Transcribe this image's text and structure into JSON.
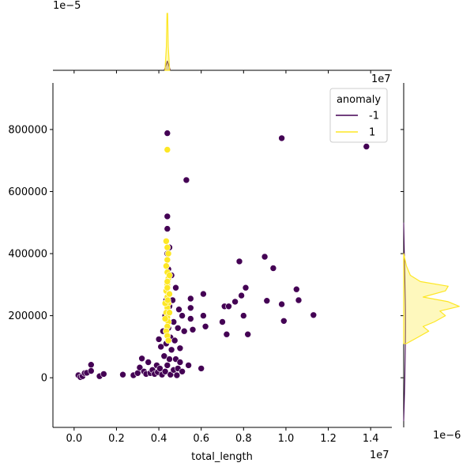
{
  "chart_data": {
    "type": "scatter",
    "kind": "jointplot",
    "xlabel": "total_length",
    "ylabel": "",
    "xlim": [
      -1000000,
      15000000
    ],
    "ylim": [
      -160000,
      950000
    ],
    "x_ticks": [
      0,
      2000000,
      4000000,
      6000000,
      8000000,
      10000000,
      12000000,
      14000000
    ],
    "x_tick_labels": [
      "0.0",
      "0.2",
      "0.4",
      "0.6",
      "0.8",
      "1.0",
      "1.2",
      "1.4"
    ],
    "y_ticks": [
      0,
      200000,
      400000,
      600000,
      800000
    ],
    "y_tick_labels": [
      "0",
      "200000",
      "400000",
      "600000",
      "800000"
    ],
    "x_offset_label": "1e7",
    "top_marginal_offset_label": "1e−5",
    "right_marginal_offset_label": "1e−6",
    "legend": {
      "title": "anomaly",
      "location": "upper right",
      "entries": [
        {
          "label": "-1",
          "color": "#440154"
        },
        {
          "label": "1",
          "color": "#fde725"
        }
      ]
    },
    "colors": {
      "anomaly_-1": "#440154",
      "anomaly_1": "#fde725"
    },
    "series": [
      {
        "name": "-1",
        "color": "#440154",
        "points": [
          [
            200000,
            8000
          ],
          [
            300000,
            2000
          ],
          [
            400000,
            5000
          ],
          [
            500000,
            15000
          ],
          [
            600000,
            16000
          ],
          [
            800000,
            42000
          ],
          [
            800000,
            22000
          ],
          [
            1200000,
            5000
          ],
          [
            1400000,
            12000
          ],
          [
            2300000,
            10000
          ],
          [
            2800000,
            8000
          ],
          [
            3000000,
            15000
          ],
          [
            3100000,
            33000
          ],
          [
            3200000,
            62000
          ],
          [
            3300000,
            20000
          ],
          [
            3400000,
            12000
          ],
          [
            3500000,
            50000
          ],
          [
            3600000,
            15000
          ],
          [
            3700000,
            25000
          ],
          [
            3800000,
            12000
          ],
          [
            3900000,
            40000
          ],
          [
            3950000,
            18000
          ],
          [
            4000000,
            124000
          ],
          [
            4050000,
            30000
          ],
          [
            4100000,
            100000
          ],
          [
            4150000,
            10000
          ],
          [
            4200000,
            150000
          ],
          [
            4250000,
            70000
          ],
          [
            4300000,
            200000
          ],
          [
            4300000,
            20000
          ],
          [
            4350000,
            250000
          ],
          [
            4350000,
            110000
          ],
          [
            4400000,
            300000
          ],
          [
            4400000,
            40000
          ],
          [
            4400000,
            788000
          ],
          [
            4400000,
            520000
          ],
          [
            4400000,
            480000
          ],
          [
            4400000,
            400000
          ],
          [
            4450000,
            350000
          ],
          [
            4450000,
            160000
          ],
          [
            4500000,
            60000
          ],
          [
            4500000,
            230000
          ],
          [
            4500000,
            420000
          ],
          [
            4550000,
            130000
          ],
          [
            4550000,
            10000
          ],
          [
            4600000,
            330000
          ],
          [
            4600000,
            90000
          ],
          [
            4650000,
            250000
          ],
          [
            4700000,
            25000
          ],
          [
            4700000,
            180000
          ],
          [
            4750000,
            120000
          ],
          [
            4800000,
            60000
          ],
          [
            4800000,
            290000
          ],
          [
            4850000,
            8000
          ],
          [
            4900000,
            160000
          ],
          [
            4900000,
            30000
          ],
          [
            4950000,
            220000
          ],
          [
            5000000,
            95000
          ],
          [
            5000000,
            50000
          ],
          [
            5100000,
            200000
          ],
          [
            5100000,
            20000
          ],
          [
            5200000,
            150000
          ],
          [
            5300000,
            637000
          ],
          [
            5400000,
            40000
          ],
          [
            5500000,
            255000
          ],
          [
            5500000,
            225000
          ],
          [
            5500000,
            190000
          ],
          [
            5600000,
            155000
          ],
          [
            6000000,
            30000
          ],
          [
            6100000,
            270000
          ],
          [
            6100000,
            200000
          ],
          [
            6200000,
            165000
          ],
          [
            7000000,
            180000
          ],
          [
            7100000,
            230000
          ],
          [
            7200000,
            140000
          ],
          [
            7300000,
            230000
          ],
          [
            7600000,
            245000
          ],
          [
            7800000,
            375000
          ],
          [
            7900000,
            265000
          ],
          [
            8000000,
            200000
          ],
          [
            8100000,
            290000
          ],
          [
            8200000,
            140000
          ],
          [
            9000000,
            390000
          ],
          [
            9100000,
            248000
          ],
          [
            9400000,
            353000
          ],
          [
            9800000,
            772000
          ],
          [
            9800000,
            237000
          ],
          [
            9900000,
            183000
          ],
          [
            10500000,
            285000
          ],
          [
            10600000,
            250000
          ],
          [
            11300000,
            202000
          ],
          [
            13800000,
            745000
          ]
        ]
      },
      {
        "name": "1",
        "color": "#fde725",
        "points": [
          [
            4400000,
            735000
          ],
          [
            4350000,
            440000
          ],
          [
            4400000,
            420000
          ],
          [
            4450000,
            400000
          ],
          [
            4400000,
            380000
          ],
          [
            4350000,
            360000
          ],
          [
            4400000,
            340000
          ],
          [
            4450000,
            320000
          ],
          [
            4400000,
            300000
          ],
          [
            4350000,
            280000
          ],
          [
            4400000,
            260000
          ],
          [
            4450000,
            240000
          ],
          [
            4400000,
            225000
          ],
          [
            4350000,
            210000
          ],
          [
            4400000,
            195000
          ],
          [
            4450000,
            180000
          ],
          [
            4400000,
            165000
          ],
          [
            4350000,
            150000
          ],
          [
            4400000,
            135000
          ],
          [
            4450000,
            120000
          ],
          [
            4400000,
            310000
          ],
          [
            4500000,
            330000
          ],
          [
            4300000,
            240000
          ],
          [
            4500000,
            270000
          ],
          [
            4300000,
            190000
          ],
          [
            4500000,
            210000
          ],
          [
            4400000,
            290000
          ],
          [
            4420000,
            250000
          ]
        ]
      }
    ],
    "x_marginal_density": {
      "series": [
        {
          "name": "-1",
          "color": "#440154",
          "x_center": 4400000,
          "shape": "sharp narrow peak"
        },
        {
          "name": "1",
          "color": "#fde725",
          "x_center": 4400000,
          "shape": "sharp narrow peak"
        }
      ]
    },
    "y_marginal_density": {
      "series": [
        {
          "name": "-1",
          "color": "#440154",
          "shape": "thin near-zero curve"
        },
        {
          "name": "1",
          "color": "#fde725",
          "filled": true,
          "curve": [
            [
              110000,
              0.05
            ],
            [
              130000,
              0.25
            ],
            [
              150000,
              0.45
            ],
            [
              165000,
              0.35
            ],
            [
              180000,
              0.55
            ],
            [
              200000,
              0.75
            ],
            [
              215000,
              0.65
            ],
            [
              230000,
              1.0
            ],
            [
              245000,
              0.8
            ],
            [
              260000,
              0.35
            ],
            [
              280000,
              0.75
            ],
            [
              295000,
              0.8
            ],
            [
              310000,
              0.3
            ],
            [
              330000,
              0.12
            ],
            [
              360000,
              0.05
            ],
            [
              400000,
              0.0
            ]
          ]
        }
      ]
    }
  }
}
